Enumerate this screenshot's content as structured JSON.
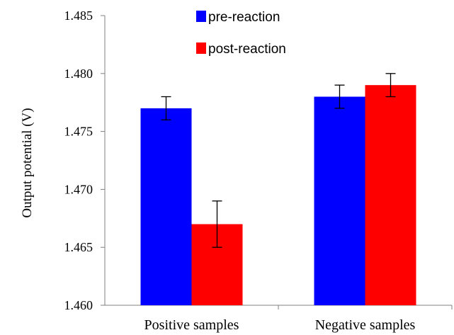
{
  "chart_data": {
    "type": "bar",
    "title": "",
    "xlabel": "",
    "ylabel": "Output potential (V)",
    "ylim": [
      1.46,
      1.485
    ],
    "yticks": [
      "1.460",
      "1.465",
      "1.470",
      "1.475",
      "1.480",
      "1.485"
    ],
    "categories": [
      "Positive samples",
      "Negative samples"
    ],
    "series": [
      {
        "name": "pre-reaction",
        "color": "#0000ff",
        "values": [
          1.477,
          1.478
        ],
        "errors": [
          0.001,
          0.001
        ]
      },
      {
        "name": "post-reaction",
        "color": "#ff0000",
        "values": [
          1.467,
          1.479
        ],
        "errors": [
          0.002,
          0.001
        ]
      }
    ],
    "legend_position": "top-center",
    "grid": false
  }
}
